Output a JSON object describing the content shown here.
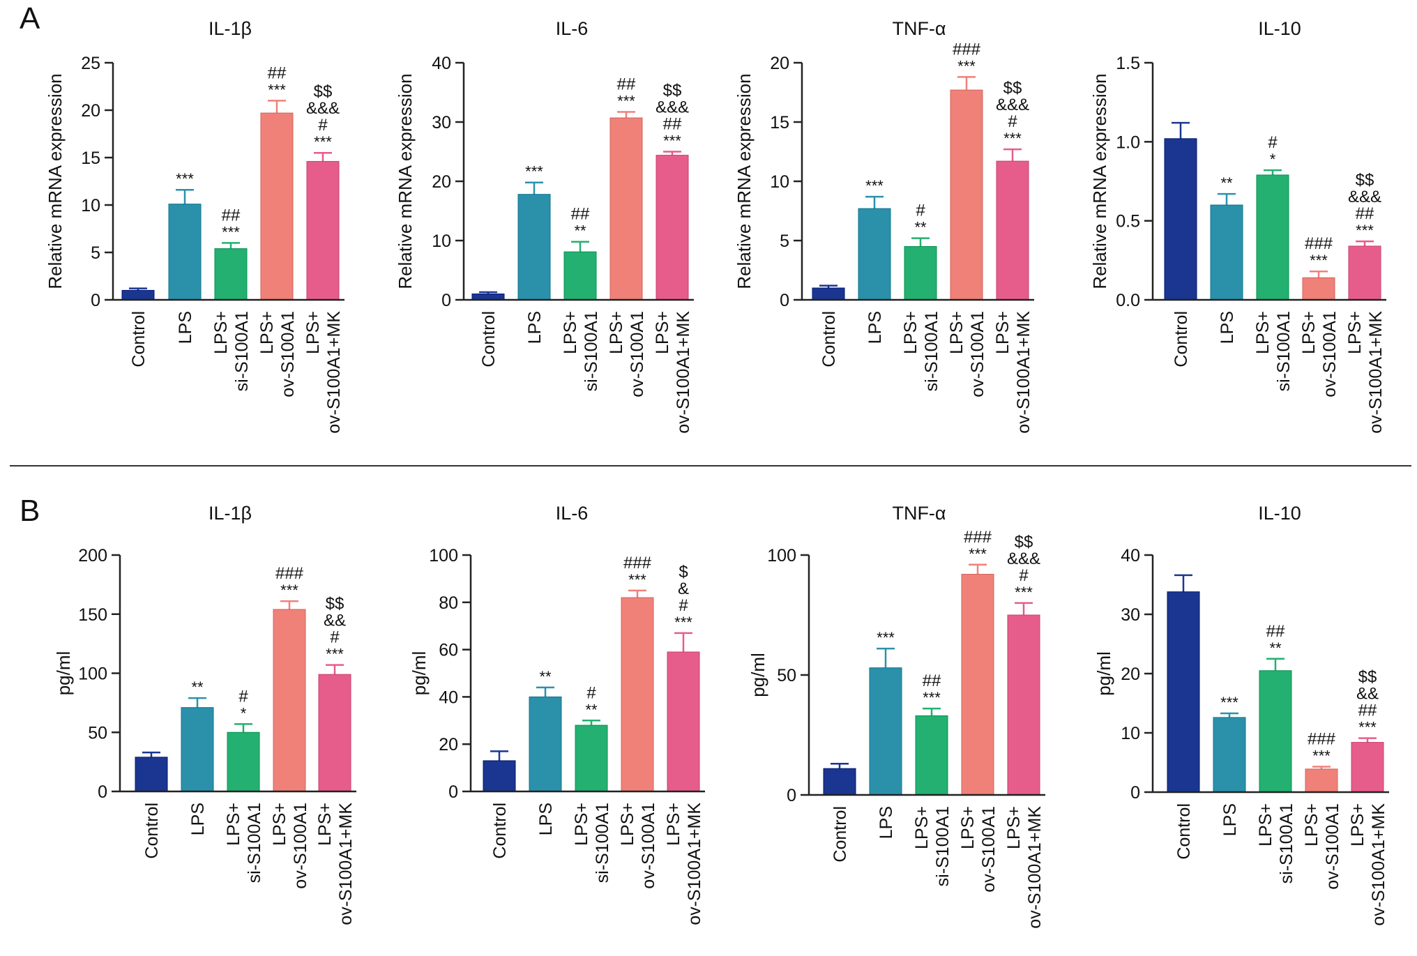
{
  "panels": [
    {
      "letter": "A",
      "ylabel": "Relative mRNA expression"
    },
    {
      "letter": "B",
      "ylabel": "pg/ml"
    }
  ],
  "colors": {
    "Control": "#1b3690",
    "LPS": "#2b91ab",
    "LPS+si-S100A1": "#23b070",
    "LPS+ov-S100A1": "#ef8179",
    "LPS+ov-S100A1+MK": "#e65d8c"
  },
  "chart_data": [
    {
      "panel": "A",
      "type": "bar",
      "title": "IL-1β",
      "ylabel": "Relative mRNA expression",
      "categories": [
        "Control",
        "LPS",
        "LPS+\nsi-S100A1",
        "LPS+\nov-S100A1",
        "LPS+\nov-S100A1+MK"
      ],
      "values": [
        1.0,
        10.1,
        5.4,
        19.7,
        14.6
      ],
      "errors": [
        0.2,
        1.5,
        0.6,
        1.3,
        0.9
      ],
      "ylim": [
        0,
        25
      ],
      "yticks": [
        0,
        5,
        10,
        15,
        20,
        25
      ],
      "annotations": [
        [],
        [
          "***"
        ],
        [
          "##",
          "***"
        ],
        [
          "##",
          "***"
        ],
        [
          "$$",
          "&&&",
          "#",
          "***"
        ]
      ]
    },
    {
      "panel": "A",
      "type": "bar",
      "title": "IL-6",
      "ylabel": "Relative mRNA expression",
      "categories": [
        "Control",
        "LPS",
        "LPS+\nsi-S100A1",
        "LPS+\nov-S100A1",
        "LPS+\nov-S100A1+MK"
      ],
      "values": [
        1.0,
        17.8,
        8.1,
        30.7,
        24.4
      ],
      "errors": [
        0.3,
        2.0,
        1.7,
        1.0,
        0.6
      ],
      "ylim": [
        0,
        40
      ],
      "yticks": [
        0,
        10,
        20,
        30,
        40
      ],
      "annotations": [
        [],
        [
          "***"
        ],
        [
          "##",
          "**"
        ],
        [
          "##",
          "***"
        ],
        [
          "$$",
          "&&&",
          "##",
          "***"
        ]
      ]
    },
    {
      "panel": "A",
      "type": "bar",
      "title": "TNF-α",
      "ylabel": "Relative mRNA expression",
      "categories": [
        "Control",
        "LPS",
        "LPS+\nsi-S100A1",
        "LPS+\nov-S100A1",
        "LPS+\nov-S100A1+MK"
      ],
      "values": [
        1.0,
        7.7,
        4.5,
        17.7,
        11.7
      ],
      "errors": [
        0.2,
        1.0,
        0.7,
        1.1,
        1.0
      ],
      "ylim": [
        0,
        20
      ],
      "yticks": [
        0,
        5,
        10,
        15,
        20
      ],
      "annotations": [
        [],
        [
          "***"
        ],
        [
          "#",
          "**"
        ],
        [
          "###",
          "***"
        ],
        [
          "$$",
          "&&&",
          "#",
          "***"
        ]
      ]
    },
    {
      "panel": "A",
      "type": "bar",
      "title": "IL-10",
      "ylabel": "Relative mRNA expression",
      "categories": [
        "Control",
        "LPS",
        "LPS+\nsi-S100A1",
        "LPS+\nov-S100A1",
        "LPS+\nov-S100A1+MK"
      ],
      "values": [
        1.02,
        0.6,
        0.79,
        0.14,
        0.34
      ],
      "errors": [
        0.1,
        0.07,
        0.03,
        0.04,
        0.03
      ],
      "ylim": [
        0,
        1.5
      ],
      "yticks": [
        0.0,
        0.5,
        1.0,
        1.5
      ],
      "yticklabels": [
        "0.0",
        "0.5",
        "1.0",
        "1.5"
      ],
      "annotations": [
        [],
        [
          "**"
        ],
        [
          "#",
          "*"
        ],
        [
          "###",
          "***"
        ],
        [
          "$$",
          "&&&",
          "##",
          "***"
        ]
      ]
    },
    {
      "panel": "B",
      "type": "bar",
      "title": "IL-1β",
      "ylabel": "pg/ml",
      "categories": [
        "Control",
        "LPS",
        "LPS+\nsi-S100A1",
        "LPS+\nov-S100A1",
        "LPS+\nov-S100A1+MK"
      ],
      "values": [
        29,
        71,
        50,
        154,
        99
      ],
      "errors": [
        4,
        8,
        7,
        7,
        8
      ],
      "ylim": [
        0,
        200
      ],
      "yticks": [
        0,
        50,
        100,
        150,
        200
      ],
      "annotations": [
        [],
        [
          "**"
        ],
        [
          "#",
          "*"
        ],
        [
          "###",
          "***"
        ],
        [
          "$$",
          "&&",
          "#",
          "***"
        ]
      ]
    },
    {
      "panel": "B",
      "type": "bar",
      "title": "IL-6",
      "ylabel": "pg/ml",
      "categories": [
        "Control",
        "LPS",
        "LPS+\nsi-S100A1",
        "LPS+\nov-S100A1",
        "LPS+\nov-S100A1+MK"
      ],
      "values": [
        13,
        40,
        28,
        82,
        59
      ],
      "errors": [
        4,
        4,
        2,
        3,
        8
      ],
      "ylim": [
        0,
        100
      ],
      "yticks": [
        0,
        20,
        40,
        60,
        80,
        100
      ],
      "annotations": [
        [],
        [
          "**"
        ],
        [
          "#",
          "**"
        ],
        [
          "###",
          "***"
        ],
        [
          "$",
          "&",
          "#",
          "***"
        ]
      ]
    },
    {
      "panel": "B",
      "type": "bar",
      "title": "TNF-α",
      "ylabel": "pg/ml",
      "categories": [
        "Control",
        "LPS",
        "LPS+\nsi-S100A1",
        "LPS+\nov-S100A1",
        "LPS+\nov-S100A1+MK"
      ],
      "values": [
        11,
        53,
        33,
        92,
        75
      ],
      "errors": [
        2,
        8,
        3,
        4,
        5
      ],
      "ylim": [
        0,
        100
      ],
      "yticks": [
        0,
        50,
        100
      ],
      "annotations": [
        [],
        [
          "***"
        ],
        [
          "##",
          "***"
        ],
        [
          "###",
          "***"
        ],
        [
          "$$",
          "&&&",
          "#",
          "***"
        ]
      ]
    },
    {
      "panel": "B",
      "type": "bar",
      "title": "IL-10",
      "ylabel": "pg/ml",
      "categories": [
        "Control",
        "LPS",
        "LPS+\nsi-S100A1",
        "LPS+\nov-S100A1",
        "LPS+\nov-S100A1+MK"
      ],
      "values": [
        33.8,
        12.6,
        20.5,
        3.9,
        8.4
      ],
      "errors": [
        2.8,
        0.7,
        2.0,
        0.4,
        0.7
      ],
      "ylim": [
        0,
        40
      ],
      "yticks": [
        0,
        10,
        20,
        30,
        40
      ],
      "annotations": [
        [],
        [
          "***"
        ],
        [
          "##",
          "**"
        ],
        [
          "###",
          "***"
        ],
        [
          "$$",
          "&&",
          "##",
          "***"
        ]
      ]
    }
  ]
}
